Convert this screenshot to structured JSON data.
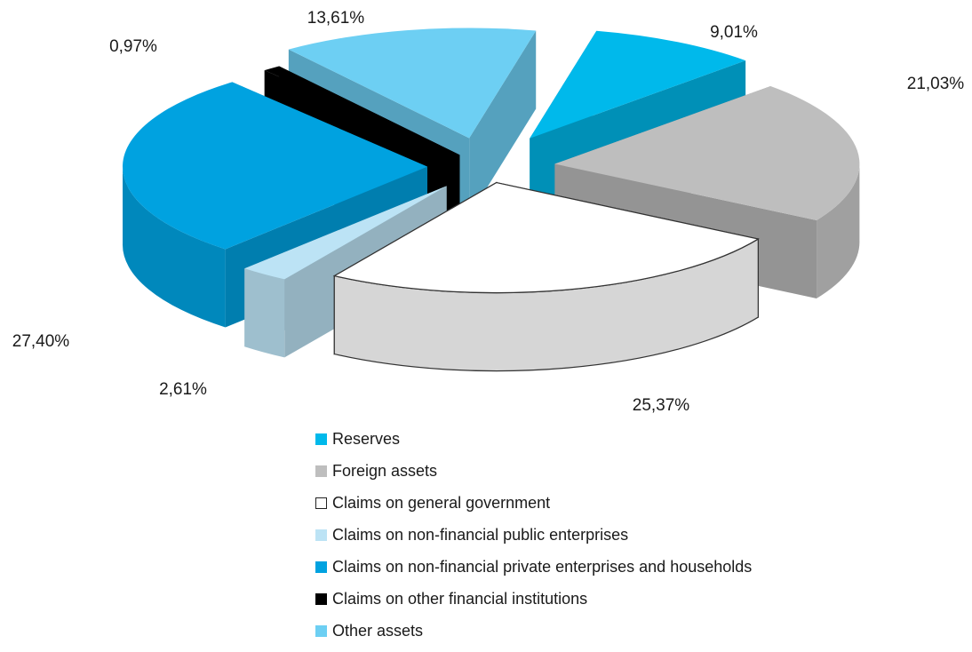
{
  "chart_data": {
    "type": "pie",
    "style": "3d-exploded",
    "slices": [
      {
        "label": "Reserves",
        "value": 9.01,
        "value_label": "9,01%",
        "color": "#00B9EB"
      },
      {
        "label": "Foreign assets",
        "value": 21.03,
        "value_label": "21,03%",
        "color": "#BEBEBE"
      },
      {
        "label": "Claims on general government",
        "value": 25.37,
        "value_label": "25,37%",
        "color": "#FFFFFF"
      },
      {
        "label": "Claims on non-financial public enterprises",
        "value": 2.61,
        "value_label": "2,61%",
        "color": "#BCE3F5"
      },
      {
        "label": "Claims on non-financial private enterprises and households",
        "value": 27.4,
        "value_label": "27,40%",
        "color": "#00A2E0"
      },
      {
        "label": "Claims on other financial institutions",
        "value": 0.97,
        "value_label": "0,97%",
        "color": "#000000"
      },
      {
        "label": "Other assets",
        "value": 13.61,
        "value_label": "13,61%",
        "color": "#6DCFF3"
      }
    ],
    "legend_position": "bottom"
  }
}
